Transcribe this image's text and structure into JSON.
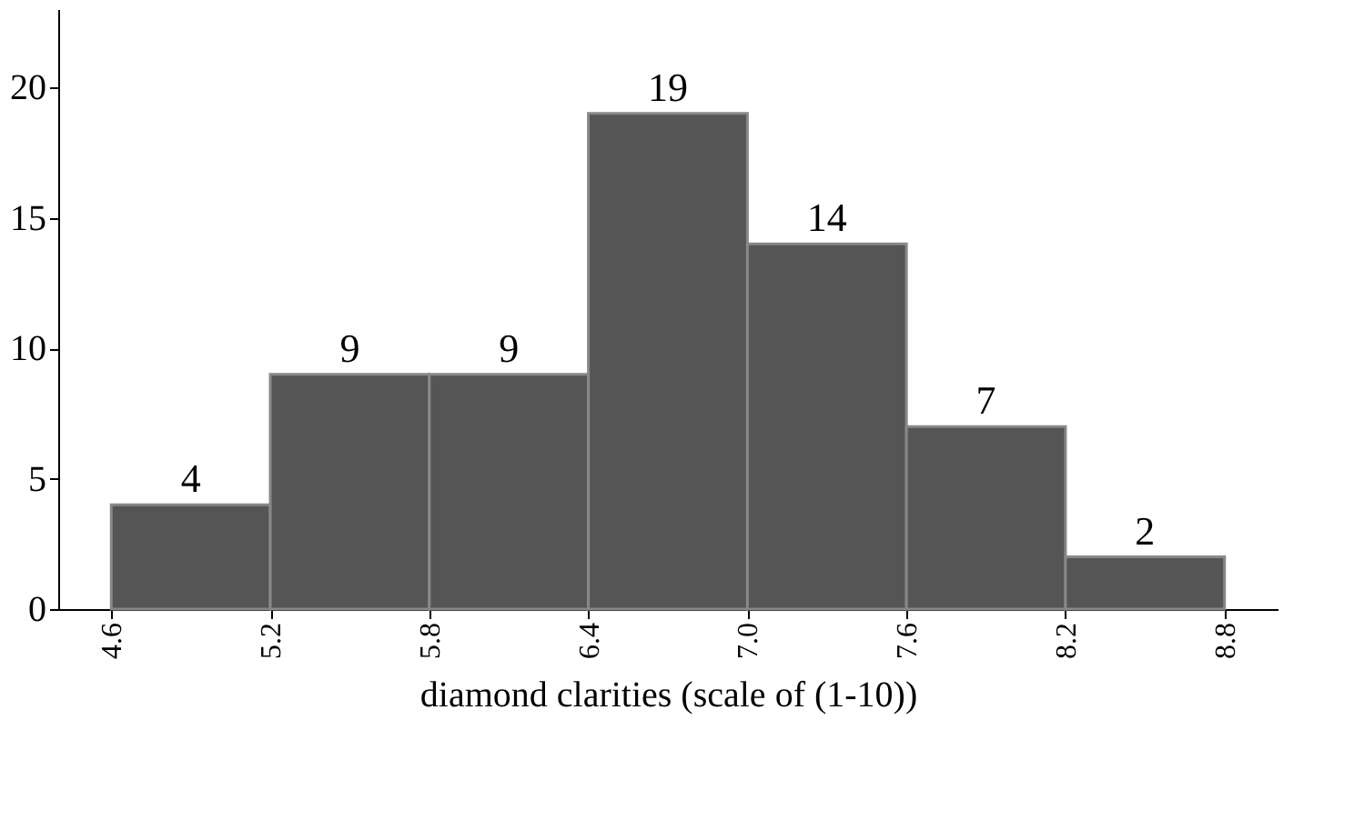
{
  "chart_data": {
    "type": "histogram",
    "xlabel": "diamond clarities (scale of (1-10))",
    "bins": [
      4.6,
      5.2,
      5.8,
      6.4,
      7.0,
      7.6,
      8.2,
      8.8
    ],
    "values": [
      4,
      9,
      9,
      19,
      14,
      7,
      2
    ],
    "color": "#555555",
    "data_labels": true,
    "xlim": [
      4.4,
      9.0
    ],
    "xticks": [
      4.6,
      5.2,
      5.8,
      6.4,
      {
        "value": 7.0,
        "label": "7.0"
      },
      7.6,
      8.2,
      8.8
    ],
    "ylim": [
      0,
      23
    ],
    "yticks": [
      0,
      5,
      10,
      15,
      20
    ],
    "grid": false
  }
}
